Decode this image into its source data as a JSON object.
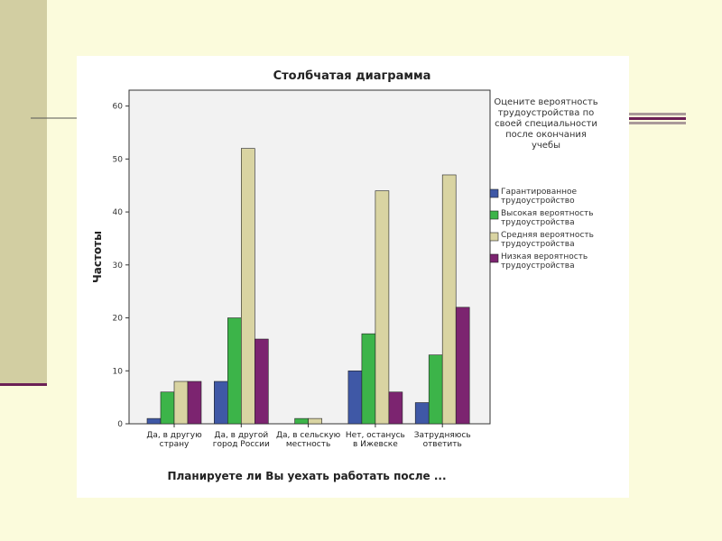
{
  "chart_data": {
    "type": "bar",
    "title": "Столбчатая диаграмма",
    "x_label": "Планируете ли Вы уехать работать после ...",
    "y_label": "Частоты",
    "legend_title": "Оцените вероятность трудоустройства по своей специальности после окончания учебы",
    "categories": [
      "Да, в другую страну",
      "Да, в другой город России",
      "Да, в сельскую местность",
      "Нет, останусь в Ижевске",
      "Затрудняюсь ответить"
    ],
    "series": [
      {
        "name": "Гарантированное трудоустройство",
        "color": "#3f58a6",
        "values": [
          1,
          8,
          0,
          10,
          4
        ]
      },
      {
        "name": "Высокая вероятность трудоустройства",
        "color": "#3cb449",
        "values": [
          6,
          20,
          1,
          17,
          13
        ]
      },
      {
        "name": "Средняя вероятность трудоустройства",
        "color": "#d9d4a2",
        "values": [
          8,
          52,
          1,
          44,
          47
        ]
      },
      {
        "name": "Низкая вероятность трудоустройства",
        "color": "#7c2470",
        "values": [
          8,
          16,
          0,
          6,
          22
        ]
      }
    ],
    "ylim": [
      0,
      63
    ],
    "yticks": [
      0,
      10,
      20,
      30,
      40,
      50,
      60
    ],
    "legend_position": "right"
  }
}
